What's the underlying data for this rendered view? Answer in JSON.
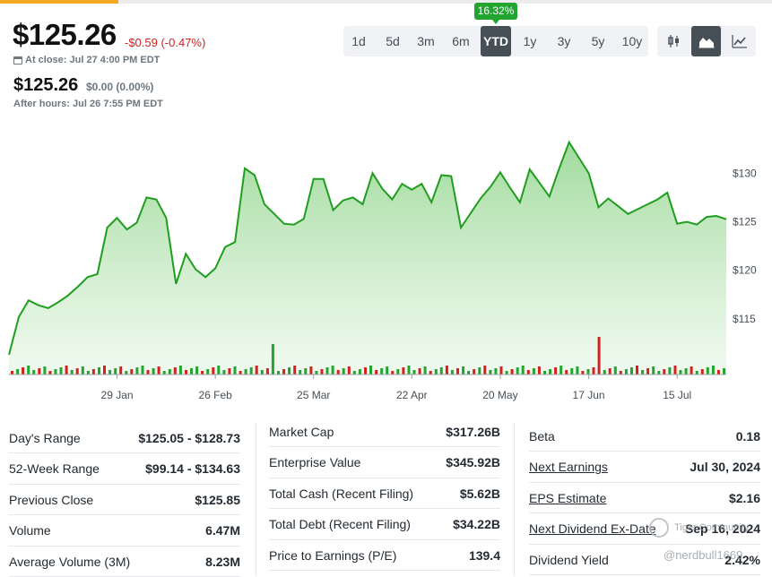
{
  "header": {
    "price": "$125.26",
    "change": "-$0.59 (-0.47%)",
    "close_label": "At close: Jul 27 4:00 PM EDT",
    "after_price": "$125.26",
    "after_change": "$0.00 (0.00%)",
    "after_label": "After hours: Jul 26 7:55 PM EDT"
  },
  "ranges": {
    "badge": "16.32%",
    "items": [
      "1d",
      "5d",
      "3m",
      "6m",
      "YTD",
      "1y",
      "3y",
      "5y",
      "10y"
    ],
    "active": "YTD"
  },
  "chart_types": [
    "candlestick-icon",
    "mountain-icon",
    "line-icon"
  ],
  "colors": {
    "up": "#21a530",
    "down": "#d61f1f",
    "line": "#1f9e1f",
    "fill": "#a6dca0",
    "active": "#464e56"
  },
  "chart_data": {
    "type": "area",
    "x": [
      "Jan 2",
      "Jan 3",
      "Jan 5",
      "Jan 8",
      "Jan 10",
      "Jan 12",
      "Jan 16",
      "Jan 18",
      "Jan 22",
      "Jan 24",
      "Jan 26",
      "Jan 29",
      "Jan 31",
      "Feb 2",
      "Feb 5",
      "Feb 7",
      "Feb 9",
      "Feb 13",
      "Feb 15",
      "Feb 20",
      "Feb 22",
      "Feb 26",
      "Feb 28",
      "Mar 1",
      "Mar 5",
      "Mar 7",
      "Mar 11",
      "Mar 13",
      "Mar 15",
      "Mar 19",
      "Mar 21",
      "Mar 25",
      "Mar 27",
      "Apr 1",
      "Apr 3",
      "Apr 5",
      "Apr 9",
      "Apr 11",
      "Apr 15",
      "Apr 17",
      "Apr 19",
      "Apr 23",
      "Apr 25",
      "Apr 29",
      "May 1",
      "May 3",
      "May 7",
      "May 9",
      "May 13",
      "May 15",
      "May 17",
      "May 21",
      "May 23",
      "May 28",
      "May 30",
      "Jun 3",
      "Jun 5",
      "Jun 7",
      "Jun 11",
      "Jun 13",
      "Jun 17",
      "Jun 20",
      "Jun 24",
      "Jun 26",
      "Jul 1",
      "Jul 3",
      "Jul 8",
      "Jul 10",
      "Jul 12",
      "Jul 16",
      "Jul 18",
      "Jul 22",
      "Jul 24",
      "Jul 26"
    ],
    "values": [
      111.3,
      115.2,
      116.9,
      116.4,
      116.1,
      116.7,
      117.4,
      118.3,
      119.3,
      119.6,
      124.4,
      125.4,
      124.2,
      124.9,
      127.5,
      127.3,
      125.4,
      118.6,
      121.7,
      120.1,
      119.3,
      120.2,
      122.4,
      122.9,
      130.5,
      129.8,
      126.8,
      125.8,
      124.8,
      124.7,
      125.3,
      129.4,
      129.4,
      126.2,
      127.2,
      127.5,
      126.8,
      130.0,
      128.4,
      127.3,
      128.9,
      128.3,
      128.9,
      127.0,
      129.8,
      129.7,
      124.4,
      125.9,
      127.4,
      128.6,
      130.1,
      128.5,
      127.0,
      130.4,
      129.0,
      127.6,
      130.5,
      133.2,
      131.6,
      130.0,
      126.5,
      127.4,
      126.6,
      125.8,
      126.3,
      126.8,
      127.3,
      128.0,
      124.8,
      125.0,
      124.7,
      125.5,
      125.6,
      125.26
    ],
    "y_ticks": [
      "$130",
      "$125",
      "$120",
      "$115"
    ],
    "y_tick_values": [
      130,
      125,
      120,
      115
    ],
    "ylim": [
      110,
      134
    ],
    "x_labels": [
      "29 Jan",
      "26 Feb",
      "25 Mar",
      "22 Apr",
      "20 May",
      "17 Jun",
      "15 Jul"
    ],
    "x_label_index": [
      11,
      21,
      31,
      41,
      50,
      59,
      68
    ],
    "volume_spikes": [
      {
        "index": 27,
        "value": 0.34,
        "up": true
      },
      {
        "index": 60,
        "value": 0.42,
        "up": false
      }
    ]
  },
  "stats": {
    "col1": [
      {
        "label": "Day's Range",
        "value": "$125.05 - $128.73"
      },
      {
        "label": "52-Week Range",
        "value": "$99.14 - $134.63"
      },
      {
        "label": "Previous Close",
        "value": "$125.85"
      },
      {
        "label": "Volume",
        "value": "6.47M"
      },
      {
        "label": "Average Volume (3M)",
        "value": "8.23M"
      }
    ],
    "col2": [
      {
        "label": "Market Cap",
        "value": "$317.26B"
      },
      {
        "label": "Enterprise Value",
        "value": "$345.92B"
      },
      {
        "label": "Total Cash (Recent Filing)",
        "value": "$5.62B"
      },
      {
        "label": "Total Debt (Recent Filing)",
        "value": "$34.22B"
      },
      {
        "label": "Price to Earnings (P/E)",
        "value": "139.4"
      }
    ],
    "col3": [
      {
        "label": "Beta",
        "value": "0.18",
        "link": false
      },
      {
        "label": "Next Earnings",
        "value": "Jul 30, 2024",
        "link": true
      },
      {
        "label": "EPS Estimate",
        "value": "$2.16",
        "link": true
      },
      {
        "label": "Next Dividend Ex-Date",
        "value": "Sep 16, 2024",
        "link": true
      },
      {
        "label": "Dividend Yield",
        "value": "2.42%",
        "link": false
      }
    ]
  },
  "watermark": {
    "name": "Tiger Community",
    "handle": "@nerdbull1669"
  }
}
